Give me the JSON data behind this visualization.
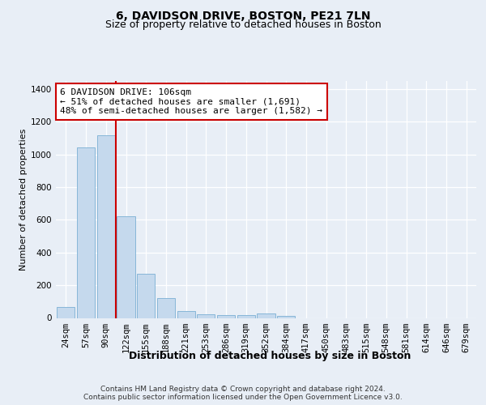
{
  "title": "6, DAVIDSON DRIVE, BOSTON, PE21 7LN",
  "subtitle": "Size of property relative to detached houses in Boston",
  "xlabel": "Distribution of detached houses by size in Boston",
  "ylabel": "Number of detached properties",
  "categories": [
    "24sqm",
    "57sqm",
    "90sqm",
    "122sqm",
    "155sqm",
    "188sqm",
    "221sqm",
    "253sqm",
    "286sqm",
    "319sqm",
    "352sqm",
    "384sqm",
    "417sqm",
    "450sqm",
    "483sqm",
    "515sqm",
    "548sqm",
    "581sqm",
    "614sqm",
    "646sqm",
    "679sqm"
  ],
  "values": [
    65,
    1045,
    1120,
    620,
    270,
    120,
    40,
    20,
    15,
    15,
    25,
    10,
    0,
    0,
    0,
    0,
    0,
    0,
    0,
    0,
    0
  ],
  "bar_color": "#c5d9ed",
  "bar_edge_color": "#7aafd4",
  "vline_color": "#cc0000",
  "vline_pos": 2.5,
  "annotation_text": "6 DAVIDSON DRIVE: 106sqm\n← 51% of detached houses are smaller (1,691)\n48% of semi-detached houses are larger (1,582) →",
  "annotation_box_color": "#ffffff",
  "annotation_border_color": "#cc0000",
  "ylim": [
    0,
    1450
  ],
  "yticks": [
    0,
    200,
    400,
    600,
    800,
    1000,
    1200,
    1400
  ],
  "bg_color": "#e8eef6",
  "plot_bg_color": "#e8eef6",
  "footer": "Contains HM Land Registry data © Crown copyright and database right 2024.\nContains public sector information licensed under the Open Government Licence v3.0.",
  "title_fontsize": 10,
  "subtitle_fontsize": 9,
  "axis_label_fontsize": 8,
  "tick_fontsize": 7.5,
  "footer_fontsize": 6.5,
  "annot_fontsize": 8
}
